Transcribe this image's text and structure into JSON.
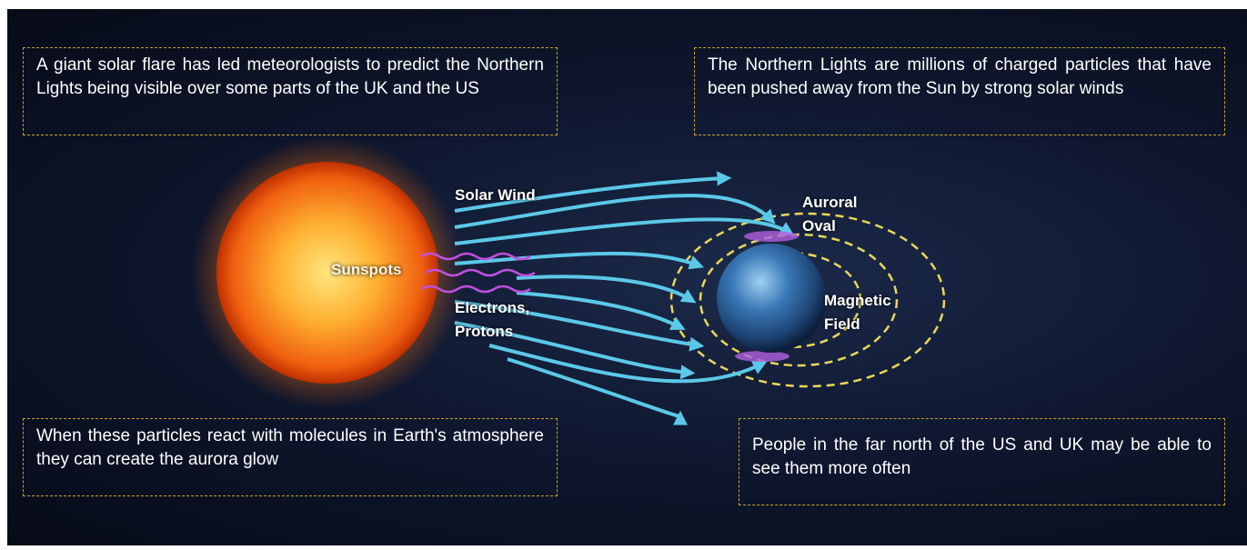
{
  "boxes": [
    {
      "text": "A giant solar flare has led meteorologists to predict the Northern Lights being visible over some parts of the UK and the US"
    },
    {
      "text": "The Northern Lights are millions of charged particles that have been pushed away from the Sun by strong solar winds"
    },
    {
      "text": "When these particles react with molecules in Earth's atmosphere they can create the aurora glow"
    },
    {
      "text": "People in the far north of the US and UK may be able to see them more often"
    }
  ],
  "labels": {
    "solar_wind": "Solar Wind",
    "sunspots": "Sunspots",
    "electrons_protons": "Electrons, Protons",
    "auroral_oval": "Auroral Oval",
    "magnetic_field": "Magnetic Field"
  }
}
